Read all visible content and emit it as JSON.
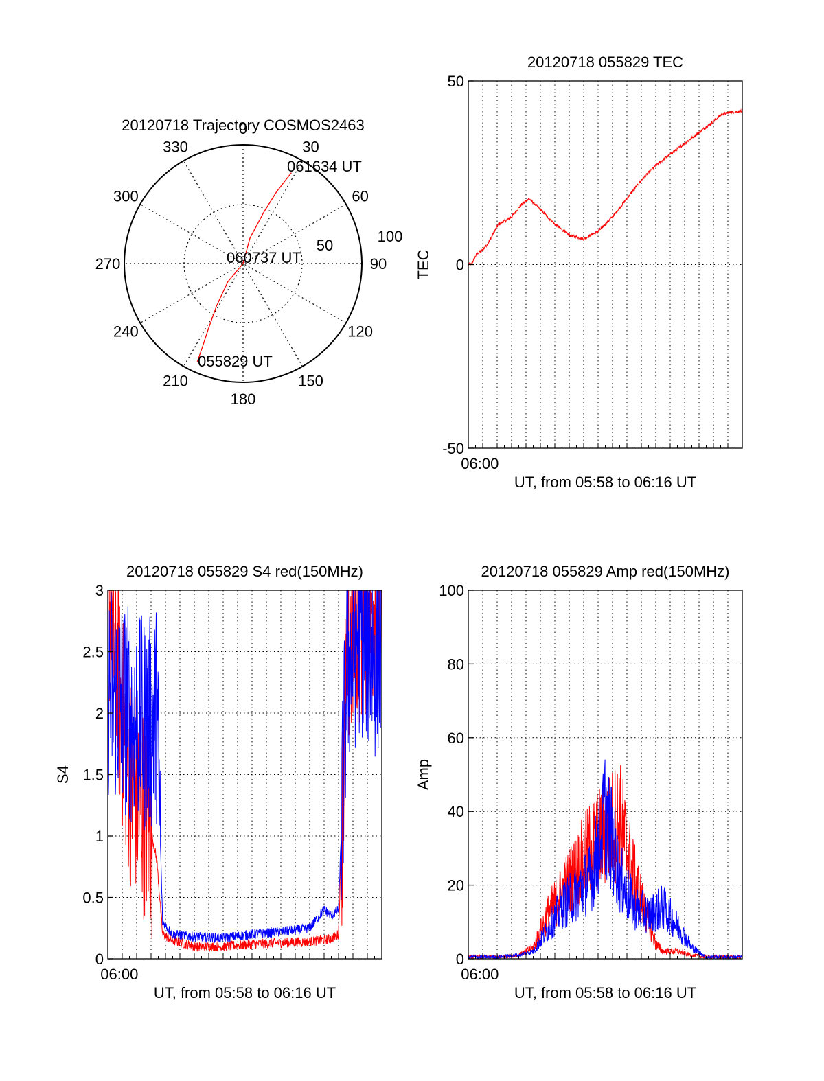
{
  "colors": {
    "red": "#ff0000",
    "blue": "#0000ff",
    "axis": "#000000",
    "grid": "#000000"
  },
  "chart_data": [
    {
      "type": "polar",
      "title": "20120718 Trajectory COSMOS2463",
      "azimuth_labels": [
        "0",
        "30",
        "60",
        "90",
        "120",
        "150",
        "180",
        "210",
        "240",
        "270",
        "300",
        "330"
      ],
      "radial_labels": [
        "50",
        "100"
      ],
      "trajectory": {
        "color": "red",
        "points": [
          {
            "az": 205,
            "el": 8
          },
          {
            "az": 206,
            "el": 20
          },
          {
            "az": 208,
            "el": 34
          },
          {
            "az": 212,
            "el": 52
          },
          {
            "az": 220,
            "el": 72
          },
          {
            "az": 250,
            "el": 90
          },
          {
            "az": 15,
            "el": 70
          },
          {
            "az": 22,
            "el": 48
          },
          {
            "az": 25,
            "el": 30
          },
          {
            "az": 28,
            "el": 12
          }
        ]
      },
      "annotations": [
        {
          "text": "061634 UT",
          "point": "end"
        },
        {
          "text": "060737 UT",
          "point": "zenith"
        },
        {
          "text": "055829 UT",
          "point": "start"
        }
      ]
    },
    {
      "type": "line",
      "title": "20120718 055829 TEC",
      "ylabel": "TEC",
      "xlabel": "UT, from 05:58 to 06:16 UT",
      "xtick_labels": [
        {
          "at": 0.8,
          "text": "06:00"
        }
      ],
      "ylim": [
        -50,
        50
      ],
      "yticks": [
        -50,
        0,
        50
      ],
      "xlim": [
        0,
        19
      ],
      "series": [
        {
          "color": "red",
          "x": [
            0.2,
            0.6,
            1.0,
            1.4,
            1.8,
            2.1,
            2.6,
            3.0,
            3.6,
            4.2,
            5.0,
            6.0,
            7.0,
            8.0,
            9.0,
            10.0,
            11.0,
            12.0,
            13.0,
            14.0,
            15.0,
            16.0,
            17.0,
            17.6,
            18.2,
            19.0
          ],
          "y": [
            0,
            3,
            4,
            6,
            9,
            11,
            12,
            13,
            16,
            18,
            15,
            11,
            8,
            7,
            9,
            13,
            18,
            23,
            27,
            30,
            33,
            36,
            39,
            41,
            41.5,
            41.8
          ]
        }
      ]
    },
    {
      "type": "line",
      "title": "20120718 055829 S4 red(150MHz)",
      "ylabel": "S4",
      "xlabel": "UT, from 05:58 to 06:16 UT",
      "xtick_labels": [
        {
          "at": 0.8,
          "text": "06:00"
        }
      ],
      "ylim": [
        0,
        3
      ],
      "yticks": [
        0,
        0.5,
        1,
        1.5,
        2,
        2.5,
        3
      ],
      "xlim": [
        0,
        19
      ],
      "series": [
        {
          "color": "red",
          "x": [
            0.2,
            0.8,
            1.5,
            2.2,
            2.9,
            3.4,
            3.8,
            4.5,
            6,
            8,
            10,
            12,
            14,
            15.4,
            16.0,
            16.6,
            17.5,
            18.5,
            19
          ],
          "y": [
            2.9,
            2.1,
            1.5,
            1.3,
            1.1,
            0.8,
            0.2,
            0.15,
            0.1,
            0.1,
            0.12,
            0.13,
            0.14,
            0.16,
            0.2,
            2.5,
            2.8,
            2.9,
            2.9
          ]
        },
        {
          "color": "blue",
          "x": [
            0.2,
            0.8,
            1.5,
            2.2,
            2.9,
            3.4,
            3.8,
            4.5,
            6,
            8,
            10,
            12,
            14,
            15.0,
            15.5,
            16.0,
            16.6,
            17.5,
            18.5,
            19
          ],
          "y": [
            2.2,
            2.1,
            2.0,
            1.9,
            1.9,
            2.0,
            0.3,
            0.2,
            0.18,
            0.17,
            0.2,
            0.22,
            0.25,
            0.4,
            0.35,
            0.4,
            2.4,
            2.7,
            2.5,
            2.6
          ]
        }
      ]
    },
    {
      "type": "line",
      "title": "20120718 055829 Amp red(150MHz)",
      "ylabel": "Amp",
      "xlabel": "UT, from 05:58 to 06:16 UT",
      "xtick_labels": [
        {
          "at": 0.8,
          "text": "06:00"
        }
      ],
      "ylim": [
        0,
        100
      ],
      "yticks": [
        0,
        20,
        40,
        60,
        80,
        100
      ],
      "xlim": [
        0,
        19
      ],
      "series": [
        {
          "color": "red",
          "x": [
            0,
            2,
            3.5,
            4.5,
            5.5,
            6.5,
            7.5,
            8.5,
            9.5,
            10.5,
            11.5,
            12.5,
            13.0,
            13.5,
            14.5,
            15.5,
            16.5,
            19
          ],
          "y": [
            0.5,
            0.5,
            1,
            3,
            12,
            18,
            24,
            30,
            34,
            38,
            22,
            10,
            4,
            2,
            2,
            1,
            0.5,
            0.5
          ]
        },
        {
          "color": "blue",
          "x": [
            0,
            2,
            3.5,
            4.5,
            5.5,
            6.5,
            7.5,
            8.5,
            9.0,
            9.5,
            10.5,
            11.5,
            12.5,
            13.5,
            14.5,
            15.5,
            16.5,
            19
          ],
          "y": [
            0.5,
            0.5,
            1,
            2,
            8,
            14,
            18,
            22,
            30,
            40,
            22,
            14,
            12,
            14,
            9,
            3,
            0.5,
            0.5
          ]
        }
      ]
    }
  ]
}
